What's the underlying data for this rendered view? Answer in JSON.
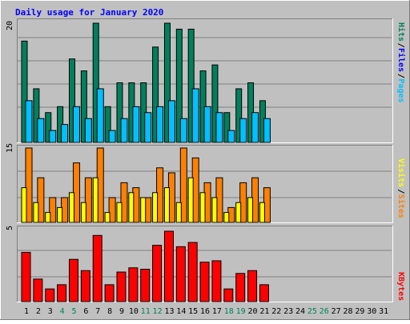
{
  "chart_data": [
    {
      "type": "bar",
      "title": "Daily usage for January 2020",
      "panel": "hits",
      "categories": [
        "1",
        "2",
        "3",
        "4",
        "5",
        "6",
        "7",
        "8",
        "9",
        "10",
        "11",
        "12",
        "13",
        "14",
        "15",
        "16",
        "17",
        "18",
        "19",
        "20",
        "21",
        "22",
        "23",
        "24",
        "25",
        "26",
        "27",
        "28",
        "29",
        "30",
        "31"
      ],
      "ylim": [
        0,
        20
      ],
      "ytick_label": "20",
      "series": [
        {
          "name": "Hits",
          "color": "#00805c",
          "values": [
            17,
            9,
            5,
            6,
            14,
            12,
            20,
            6,
            10,
            10,
            10,
            16,
            20,
            19,
            19,
            12,
            13,
            5,
            9,
            10,
            7,
            null,
            null,
            null,
            null,
            null,
            null,
            null,
            null,
            null,
            null
          ]
        },
        {
          "name": "Files",
          "color": "#0000ff",
          "values": [
            null,
            null,
            null,
            null,
            null,
            null,
            null,
            null,
            null,
            null,
            null,
            null,
            null,
            null,
            null,
            null,
            null,
            null,
            null,
            null,
            null,
            null,
            null,
            null,
            null,
            null,
            null,
            null,
            null,
            null,
            null
          ]
        },
        {
          "name": "Pages",
          "color": "#00c0ff",
          "values": [
            7,
            4,
            2,
            3,
            6,
            4,
            9,
            2,
            4,
            6,
            5,
            6,
            7,
            4,
            9,
            6,
            5,
            2,
            4,
            5,
            4,
            null,
            null,
            null,
            null,
            null,
            null,
            null,
            null,
            null,
            null
          ]
        }
      ]
    },
    {
      "type": "bar",
      "panel": "visits",
      "categories": [
        "1",
        "2",
        "3",
        "4",
        "5",
        "6",
        "7",
        "8",
        "9",
        "10",
        "11",
        "12",
        "13",
        "14",
        "15",
        "16",
        "17",
        "18",
        "19",
        "20",
        "21",
        "22",
        "23",
        "24",
        "25",
        "26",
        "27",
        "28",
        "29",
        "30",
        "31"
      ],
      "ylim": [
        0,
        15
      ],
      "ytick_label": "15",
      "series": [
        {
          "name": "Visits",
          "color": "#ffff00",
          "values": [
            7,
            4,
            2,
            3,
            6,
            4,
            9,
            2,
            4,
            6,
            5,
            6,
            7,
            4,
            9,
            6,
            5,
            2,
            4,
            5,
            4,
            null,
            null,
            null,
            null,
            null,
            null,
            null,
            null,
            null,
            null
          ]
        },
        {
          "name": "Sites",
          "color": "#ff8000",
          "values": [
            15,
            9,
            5,
            5,
            12,
            9,
            15,
            5,
            8,
            7,
            5,
            11,
            10,
            15,
            13,
            8,
            9,
            3,
            8,
            9,
            7,
            null,
            null,
            null,
            null,
            null,
            null,
            null,
            null,
            null,
            null
          ]
        }
      ]
    },
    {
      "type": "bar",
      "panel": "kbytes",
      "categories": [
        "1",
        "2",
        "3",
        "4",
        "5",
        "6",
        "7",
        "8",
        "9",
        "10",
        "11",
        "12",
        "13",
        "14",
        "15",
        "16",
        "17",
        "18",
        "19",
        "20",
        "21",
        "22",
        "23",
        "24",
        "25",
        "26",
        "27",
        "28",
        "29",
        "30",
        "31"
      ],
      "ylim": [
        0,
        5
      ],
      "ytick_label": "5",
      "series": [
        {
          "name": "KBytes",
          "color": "#ff0000",
          "values": [
            3.5,
            1.6,
            0.9,
            1.2,
            3.0,
            2.2,
            4.7,
            1.2,
            2.1,
            2.4,
            2.3,
            4.0,
            5.0,
            3.9,
            4.2,
            2.8,
            2.9,
            0.9,
            2.0,
            2.2,
            1.2,
            null,
            null,
            null,
            null,
            null,
            null,
            null,
            null,
            null,
            null
          ]
        }
      ]
    }
  ],
  "legend": {
    "hits": "Hits",
    "files": "Files",
    "pages": "Pages",
    "sites": "Sites",
    "visits": "Visits",
    "kbytes": "KBytes",
    "separator": "/"
  },
  "weekend_days": [
    4,
    5,
    11,
    12,
    18,
    19,
    25,
    26
  ],
  "colors": {
    "background": "#c0c0c0",
    "frame": "#ffffff",
    "title": "#0000ff",
    "weekday_label": "#000000",
    "weekend_label": "#00805c",
    "grid": "#808080"
  }
}
